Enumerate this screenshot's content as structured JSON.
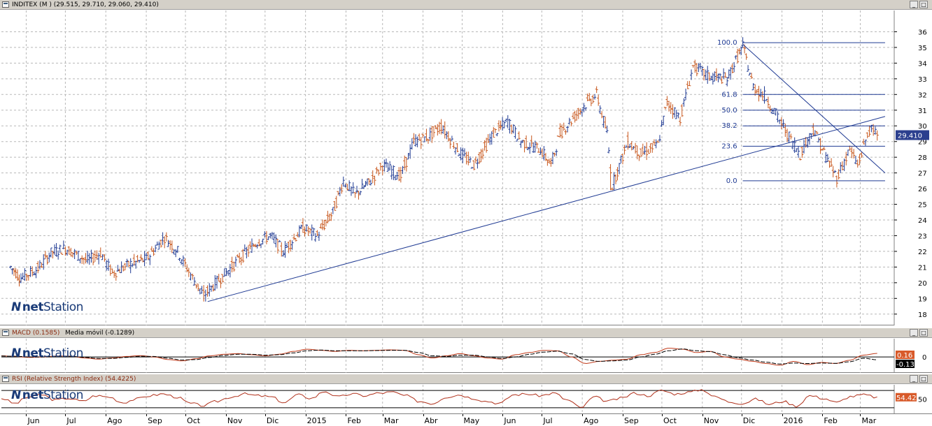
{
  "header": {
    "main": "INDITEX (M ) (29.515, 29.710, 29.060, 29.410)",
    "macd": "MACD (0.1585)",
    "macd_ma": "Media móvil (-0.1289)",
    "rsi": "RSI (Relative Strength Index) (54.4225)",
    "minimize_icon": "minimize-icon",
    "maximize_icon": "maximize-icon"
  },
  "logo": {
    "brand_bold": "net",
    "brand": "Station",
    "icon": "n-logo-icon"
  },
  "colors": {
    "up": "#1f3a93",
    "down": "#c8581e",
    "line": "#1f3a93",
    "macd": "#c03a1a",
    "signal": "#000000",
    "rsi": "#b0301a",
    "tag": "#2b3f8e",
    "tag_red": "#d85a2a",
    "grid": "#b8b8b8"
  },
  "chart_data": [
    {
      "type": "candlestick",
      "name": "INDITEX",
      "open": 29.515,
      "high": 29.71,
      "low": 29.06,
      "close": 29.41,
      "ylim": [
        17.5,
        37
      ],
      "yticks": [
        18,
        19,
        20,
        21,
        22,
        23,
        24,
        25,
        26,
        27,
        28,
        29,
        30,
        31,
        32,
        33,
        34,
        35,
        36
      ],
      "last_price_label": "29.410",
      "price_path": [
        [
          "2014-05-20",
          21.0
        ],
        [
          "2014-05-28",
          20.3
        ],
        [
          "2014-06-10",
          20.9
        ],
        [
          "2014-06-20",
          21.9
        ],
        [
          "2014-07-01",
          22.2
        ],
        [
          "2014-07-18",
          21.4
        ],
        [
          "2014-07-28",
          21.9
        ],
        [
          "2014-08-06",
          20.6
        ],
        [
          "2014-08-20",
          21.2
        ],
        [
          "2014-09-01",
          21.5
        ],
        [
          "2014-09-15",
          22.9
        ],
        [
          "2014-09-25",
          22.0
        ],
        [
          "2014-10-05",
          20.5
        ],
        [
          "2014-10-15",
          19.2
        ],
        [
          "2014-10-28",
          20.3
        ],
        [
          "2014-11-10",
          21.4
        ],
        [
          "2014-11-25",
          22.6
        ],
        [
          "2014-12-05",
          23.0
        ],
        [
          "2014-12-15",
          22.0
        ],
        [
          "2014-12-30",
          23.5
        ],
        [
          "2015-01-10",
          23.0
        ],
        [
          "2015-01-22",
          24.5
        ],
        [
          "2015-01-30",
          26.5
        ],
        [
          "2015-02-08",
          25.6
        ],
        [
          "2015-02-20",
          26.5
        ],
        [
          "2015-03-01",
          27.5
        ],
        [
          "2015-03-15",
          26.8
        ],
        [
          "2015-03-25",
          29.0
        ],
        [
          "2015-04-05",
          29.3
        ],
        [
          "2015-04-15",
          30.0
        ],
        [
          "2015-04-30",
          28.2
        ],
        [
          "2015-05-10",
          27.5
        ],
        [
          "2015-05-25",
          29.5
        ],
        [
          "2015-06-05",
          30.3
        ],
        [
          "2015-06-15",
          29.0
        ],
        [
          "2015-06-30",
          28.5
        ],
        [
          "2015-07-08",
          27.5
        ],
        [
          "2015-07-15",
          29.5
        ],
        [
          "2015-07-25",
          30.5
        ],
        [
          "2015-08-05",
          31.5
        ],
        [
          "2015-08-12",
          32.0
        ],
        [
          "2015-08-20",
          29.5
        ],
        [
          "2015-08-24",
          26.2
        ],
        [
          "2015-09-05",
          29.0
        ],
        [
          "2015-09-15",
          28.2
        ],
        [
          "2015-09-28",
          28.8
        ],
        [
          "2015-10-05",
          31.5
        ],
        [
          "2015-10-15",
          30.5
        ],
        [
          "2015-10-25",
          33.8
        ],
        [
          "2015-11-05",
          33.2
        ],
        [
          "2015-11-20",
          33.0
        ],
        [
          "2015-12-02",
          35.1
        ],
        [
          "2015-12-10",
          32.5
        ],
        [
          "2015-12-20",
          31.8
        ],
        [
          "2016-01-05",
          29.5
        ],
        [
          "2016-01-15",
          28.2
        ],
        [
          "2016-01-25",
          29.8
        ],
        [
          "2016-02-05",
          27.8
        ],
        [
          "2016-02-12",
          26.7
        ],
        [
          "2016-02-22",
          28.5
        ],
        [
          "2016-02-28",
          27.5
        ],
        [
          "2016-03-08",
          29.8
        ],
        [
          "2016-03-14",
          29.41
        ]
      ],
      "trendlines": [
        {
          "from": [
            "2014-10-18",
            18.8
          ],
          "to": [
            "2016-03-20",
            30.6
          ]
        },
        {
          "from": [
            "2015-12-02",
            35.2
          ],
          "to": [
            "2016-03-20",
            27.0
          ]
        }
      ],
      "fibonacci": {
        "start_date": "2015-12-02",
        "end_date": "2016-03-20",
        "levels": [
          {
            "label": "100.0",
            "value": 35.3
          },
          {
            "label": "61.8",
            "value": 32.0
          },
          {
            "label": "50.0",
            "value": 31.0
          },
          {
            "label": "38.2",
            "value": 30.0
          },
          {
            "label": "23.6",
            "value": 28.7
          },
          {
            "label": "0.0",
            "value": 26.5
          }
        ]
      }
    },
    {
      "type": "line",
      "name": "MACD",
      "ylim": [
        -0.6,
        0.7
      ],
      "yticks": [
        0
      ],
      "series": [
        {
          "name": "MACD",
          "values": [
            0.05,
            0.02,
            -0.02,
            0.0,
            0.04,
            0.03,
            -0.05,
            -0.1,
            -0.05,
            0.02,
            0.06,
            0.0,
            -0.12,
            -0.18,
            -0.08,
            0.05,
            0.12,
            0.15,
            0.1,
            0.05,
            0.12,
            0.25,
            0.35,
            0.3,
            0.25,
            0.3,
            0.28,
            0.3,
            0.32,
            0.3,
            0.1,
            -0.05,
            0.05,
            0.15,
            0.05,
            -0.05,
            -0.1,
            0.1,
            0.2,
            0.3,
            0.28,
            0.0,
            -0.3,
            -0.2,
            -0.15,
            -0.1,
            0.1,
            0.2,
            0.4,
            0.35,
            0.2,
            0.25,
            0.0,
            -0.1,
            -0.2,
            -0.3,
            -0.38,
            -0.2,
            -0.35,
            -0.25,
            -0.3,
            -0.15,
            0.08,
            0.16
          ]
        },
        {
          "name": "Media móvil",
          "values": [
            0.04,
            0.03,
            0.0,
            0.0,
            0.03,
            0.03,
            -0.02,
            -0.07,
            -0.07,
            -0.02,
            0.03,
            0.02,
            -0.06,
            -0.14,
            -0.12,
            -0.02,
            0.07,
            0.12,
            0.12,
            0.08,
            0.1,
            0.18,
            0.28,
            0.31,
            0.28,
            0.28,
            0.28,
            0.29,
            0.3,
            0.3,
            0.2,
            0.05,
            0.02,
            0.08,
            0.08,
            0.0,
            -0.07,
            0.0,
            0.12,
            0.22,
            0.26,
            0.14,
            -0.12,
            -0.2,
            -0.18,
            -0.14,
            0.0,
            0.12,
            0.28,
            0.36,
            0.28,
            0.24,
            0.1,
            -0.04,
            -0.14,
            -0.24,
            -0.32,
            -0.28,
            -0.3,
            -0.28,
            -0.29,
            -0.22,
            -0.06,
            -0.13
          ]
        }
      ],
      "last_labels": [
        "0.16",
        "-0.13"
      ]
    },
    {
      "type": "line",
      "name": "RSI",
      "ylim": [
        20,
        80
      ],
      "yticks": [
        50
      ],
      "series": [
        {
          "name": "RSI",
          "values": [
            52,
            40,
            55,
            60,
            48,
            52,
            45,
            58,
            55,
            42,
            50,
            58,
            62,
            55,
            40,
            35,
            45,
            55,
            62,
            58,
            55,
            42,
            60,
            52,
            68,
            55,
            62,
            58,
            64,
            66,
            58,
            45,
            40,
            55,
            60,
            52,
            45,
            40,
            60,
            62,
            58,
            64,
            48,
            30,
            55,
            45,
            52,
            64,
            58,
            70,
            62,
            66,
            72,
            55,
            44,
            40,
            50,
            38,
            45,
            34,
            58,
            52,
            42,
            56,
            60,
            54
          ]
        }
      ],
      "last_label": "54.42"
    }
  ],
  "xaxis": {
    "labels": [
      {
        "label": "Jun",
        "date": "2014-06-01"
      },
      {
        "label": "Jul",
        "date": "2014-07-01"
      },
      {
        "label": "Ago",
        "date": "2014-08-01"
      },
      {
        "label": "Sep",
        "date": "2014-09-01"
      },
      {
        "label": "Oct",
        "date": "2014-10-01"
      },
      {
        "label": "Nov",
        "date": "2014-11-01"
      },
      {
        "label": "Dic",
        "date": "2014-12-01"
      },
      {
        "label": "2015",
        "date": "2015-01-01"
      },
      {
        "label": "Feb",
        "date": "2015-02-01"
      },
      {
        "label": "Mar",
        "date": "2015-03-01"
      },
      {
        "label": "Abr",
        "date": "2015-04-01"
      },
      {
        "label": "May",
        "date": "2015-05-01"
      },
      {
        "label": "Jun",
        "date": "2015-06-01"
      },
      {
        "label": "Jul",
        "date": "2015-07-01"
      },
      {
        "label": "Ago",
        "date": "2015-08-01"
      },
      {
        "label": "Sep",
        "date": "2015-09-01"
      },
      {
        "label": "Oct",
        "date": "2015-10-01"
      },
      {
        "label": "Nov",
        "date": "2015-11-01"
      },
      {
        "label": "Dic",
        "date": "2015-12-01"
      },
      {
        "label": "2016",
        "date": "2016-01-01"
      },
      {
        "label": "Feb",
        "date": "2016-02-01"
      },
      {
        "label": "Mar",
        "date": "2016-03-01"
      }
    ]
  }
}
